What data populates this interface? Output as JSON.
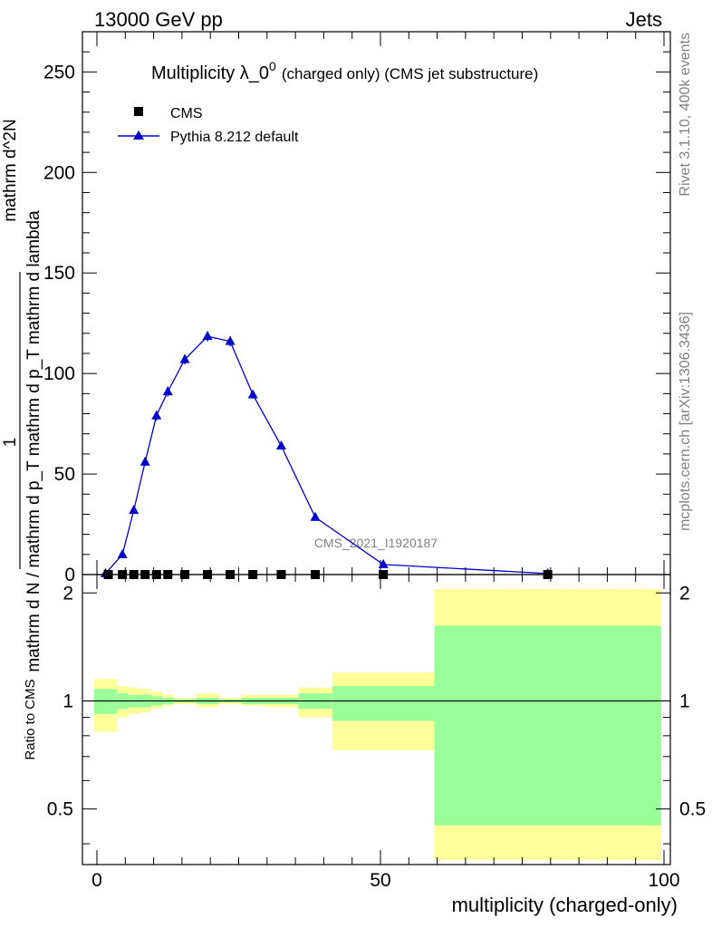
{
  "header": {
    "left": "13000 GeV pp",
    "right": "Jets"
  },
  "side_labels": {
    "rivet": "Rivet 3.1.10,  400k events",
    "mcplots": "mcplots.cern.ch [arXiv:1306.3436]"
  },
  "chart_data": [
    {
      "type": "line",
      "title": "Multiplicity λ_0^0 (charged only) (CMS jet substructure)",
      "title_main": "Multiplicity λ_0",
      "title_sup": "0",
      "title_suffix": "(charged only) (CMS jet substructure)",
      "ylabel": {
        "frac_numerator": "1",
        "frac_denominator": "mathrm d N / mathrm d p_T mathrm d p_T mathrm d lambda",
        "second_numerator": "mathrm d^2N",
        "text": "1 / (mathrm d N / mathrm d p_T) mathrm d^2N / (mathrm d p_T mathrm d lambda)"
      },
      "ylim": [
        0,
        270
      ],
      "xlim": [
        -2,
        100
      ],
      "y_ticks": [
        "0",
        "50",
        "100",
        "150",
        "200",
        "250"
      ],
      "watermark": "CMS_2021_I1920187",
      "legend": {
        "position": "top-left",
        "entries": [
          "CMS",
          "Pythia 8.212 default"
        ]
      },
      "series": [
        {
          "name": "CMS",
          "marker": "square",
          "color": "#000000",
          "x": [
            2,
            4.5,
            6.5,
            8.5,
            10.5,
            12.5,
            15.5,
            19.5,
            23.5,
            27.5,
            32.5,
            38.5,
            50.5,
            79.5
          ],
          "y": [
            0,
            0,
            0,
            0,
            0,
            0,
            0,
            0,
            0,
            0,
            0,
            0,
            0,
            0
          ]
        },
        {
          "name": "Pythia 8.212 default",
          "marker": "triangle",
          "color": "#0000cc",
          "x": [
            1.5,
            4.5,
            6.5,
            8.5,
            10.5,
            12.5,
            15.5,
            19.5,
            23.5,
            27.5,
            32.5,
            38.5,
            50.5,
            79.5
          ],
          "y": [
            0.5,
            10,
            32,
            56,
            79,
            91,
            107,
            118.5,
            116,
            89.5,
            64,
            28.5,
            5,
            0.5
          ],
          "yerr": [
            0.3,
            1,
            1.5,
            2,
            2.5,
            2.5,
            2.5,
            2.5,
            2.5,
            2,
            1.5,
            1,
            0.3,
            0.2
          ]
        }
      ]
    },
    {
      "type": "area",
      "title": "Ratio to CMS",
      "ylabel": "Ratio to CMS",
      "xlabel": "multiplicity (charged-only)",
      "ylim": [
        0.35,
        2.25
      ],
      "y_ticks": [
        "0.5",
        "1",
        "2"
      ],
      "x_ticks": [
        "0",
        "50",
        "100"
      ],
      "xlim": [
        -2,
        100
      ],
      "reference_line": 1,
      "bands": {
        "bin_edges": [
          -0.5,
          3.5,
          5.5,
          7.5,
          9.5,
          11.5,
          13.5,
          17.5,
          21.5,
          25.5,
          29.5,
          35.5,
          41.5,
          59.5,
          99.5
        ],
        "green_upper": [
          1.08,
          1.05,
          1.04,
          1.04,
          1.03,
          1.02,
          1.01,
          1.02,
          1.01,
          1.02,
          1.02,
          1.05,
          1.1,
          1.62
        ],
        "green_lower": [
          0.92,
          0.95,
          0.96,
          0.96,
          0.97,
          0.98,
          0.99,
          0.98,
          0.99,
          0.98,
          0.98,
          0.95,
          0.88,
          0.45
        ],
        "yellow_upper": [
          1.15,
          1.1,
          1.09,
          1.08,
          1.06,
          1.04,
          1.02,
          1.05,
          1.02,
          1.04,
          1.04,
          1.09,
          1.2,
          2.05
        ],
        "yellow_lower": [
          0.82,
          0.9,
          0.92,
          0.93,
          0.95,
          0.97,
          0.98,
          0.96,
          0.98,
          0.97,
          0.96,
          0.9,
          0.73,
          0.36
        ],
        "green_color": "#99ff99",
        "yellow_color": "#ffff99"
      }
    }
  ]
}
